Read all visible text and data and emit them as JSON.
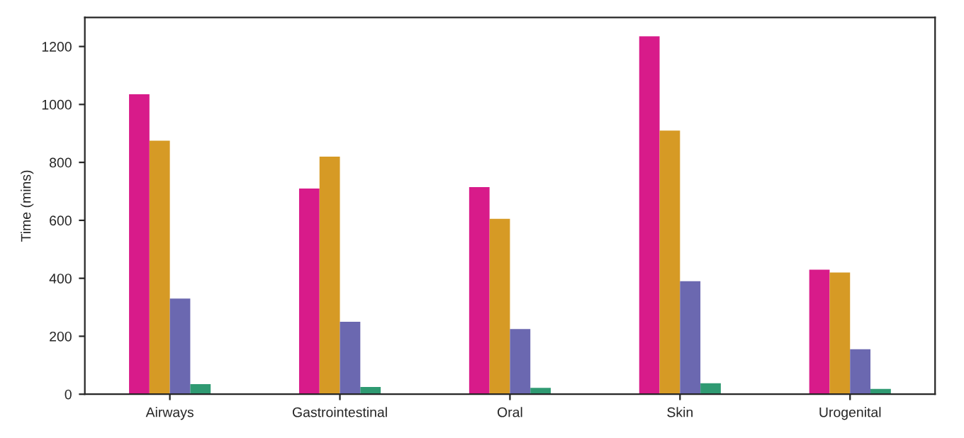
{
  "chart_data": {
    "type": "bar",
    "ylabel": "Time (mins)",
    "categories": [
      "Airways",
      "Gastrointestinal",
      "Oral",
      "Skin",
      "Urogenital"
    ],
    "series": [
      {
        "color": "#d81b8a",
        "values": [
          1035,
          710,
          715,
          1235,
          430
        ]
      },
      {
        "color": "#d69a25",
        "values": [
          875,
          820,
          605,
          910,
          420
        ]
      },
      {
        "color": "#6b68b0",
        "values": [
          330,
          250,
          225,
          390,
          155
        ]
      },
      {
        "color": "#2f9a72",
        "values": [
          35,
          25,
          22,
          38,
          18
        ]
      }
    ],
    "ylim": [
      0,
      1300
    ],
    "yticks": [
      0,
      200,
      400,
      600,
      800,
      1000,
      1200
    ],
    "grid": false
  }
}
